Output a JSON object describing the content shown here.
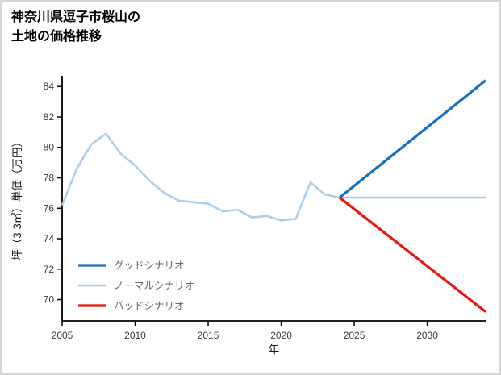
{
  "title": {
    "line1": "神奈川県逗子市桜山の",
    "line2": "土地の価格推移"
  },
  "chart_data": {
    "type": "line",
    "title": "神奈川県逗子市桜山の土地の価格推移",
    "xlabel": "年",
    "ylabel": "坪（3.3㎡）単価（万円）",
    "xlim": [
      2005,
      2034
    ],
    "ylim": [
      68.6,
      84.7
    ],
    "xticks": [
      2005,
      2010,
      2015,
      2020,
      2025,
      2030
    ],
    "yticks": [
      70,
      72,
      74,
      76,
      78,
      80,
      82,
      84
    ],
    "grid": false,
    "legend_position": "lower-left",
    "axis_color": "#000000",
    "tick_label_color": "#3a3a3a",
    "legend_label_color": "#666666",
    "series": [
      {
        "name": "グッドシナリオ",
        "color": "#1670c0",
        "width": 3.2,
        "x": [
          2024,
          2034
        ],
        "y": [
          76.7,
          84.4
        ]
      },
      {
        "name": "ノーマルシナリオ",
        "color": "#a8cdee",
        "width": 2.5,
        "x": [
          2005,
          2006,
          2007,
          2008,
          2009,
          2010,
          2011,
          2012,
          2013,
          2014,
          2015,
          2016,
          2017,
          2018,
          2019,
          2020,
          2021,
          2022,
          2023,
          2024,
          2025,
          2026,
          2027,
          2028,
          2029,
          2030,
          2031,
          2032,
          2033,
          2034
        ],
        "y": [
          76.2,
          78.6,
          80.2,
          80.9,
          79.6,
          78.8,
          77.8,
          77.0,
          76.5,
          76.4,
          76.3,
          75.8,
          75.9,
          75.4,
          75.5,
          75.2,
          75.3,
          77.7,
          76.9,
          76.7,
          76.7,
          76.7,
          76.7,
          76.7,
          76.7,
          76.7,
          76.7,
          76.7,
          76.7,
          76.7
        ]
      },
      {
        "name": "バッドシナリオ",
        "color": "#e8160f",
        "width": 3.2,
        "x": [
          2024,
          2034
        ],
        "y": [
          76.7,
          69.2
        ]
      }
    ]
  }
}
